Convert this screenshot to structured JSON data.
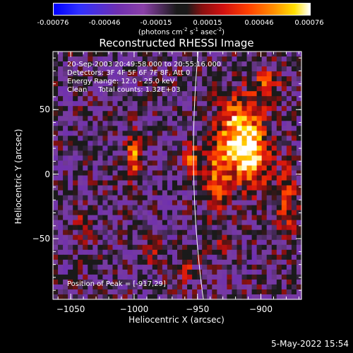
{
  "colorbar": {
    "ticks": [
      "-0.00076",
      "-0.00046",
      "-0.00015",
      "0.00015",
      "0.00046",
      "0.00076"
    ],
    "unit_main": "(photons cm",
    "unit_exp1": "-2",
    "unit_mid": " s",
    "unit_exp2": "-1",
    "unit_mid2": " asec",
    "unit_exp3": "-2",
    "unit_end": ")"
  },
  "chart_data": {
    "type": "heatmap",
    "title": "Reconstructed RHESSI Image",
    "xlabel": "Heliocentric X (arcsec)",
    "ylabel": "Heliocentric Y (arcsec)",
    "xlim": [
      -1064,
      -868
    ],
    "ylim": [
      -97,
      95
    ],
    "xticks": [
      -1050,
      -1000,
      -950,
      -900
    ],
    "yticks": [
      50,
      0,
      -50
    ],
    "clim": [
      -0.00076,
      0.00076
    ],
    "peak": [
      -917,
      29
    ],
    "annotations": {
      "line1": "20-Sep-2003 20:49:58.000 to 20:55:16.000",
      "line2": "Detectors: 3F 4F 5F 6F 7F 8F, Att 0",
      "line3": "Energy Range: 12.0 - 25.0 keV",
      "line4": "Clean     Total counts: 1.32E+03"
    },
    "peak_label": "Position of Peak = [-917,29]"
  },
  "timestamp": "5-May-2022 15:54"
}
